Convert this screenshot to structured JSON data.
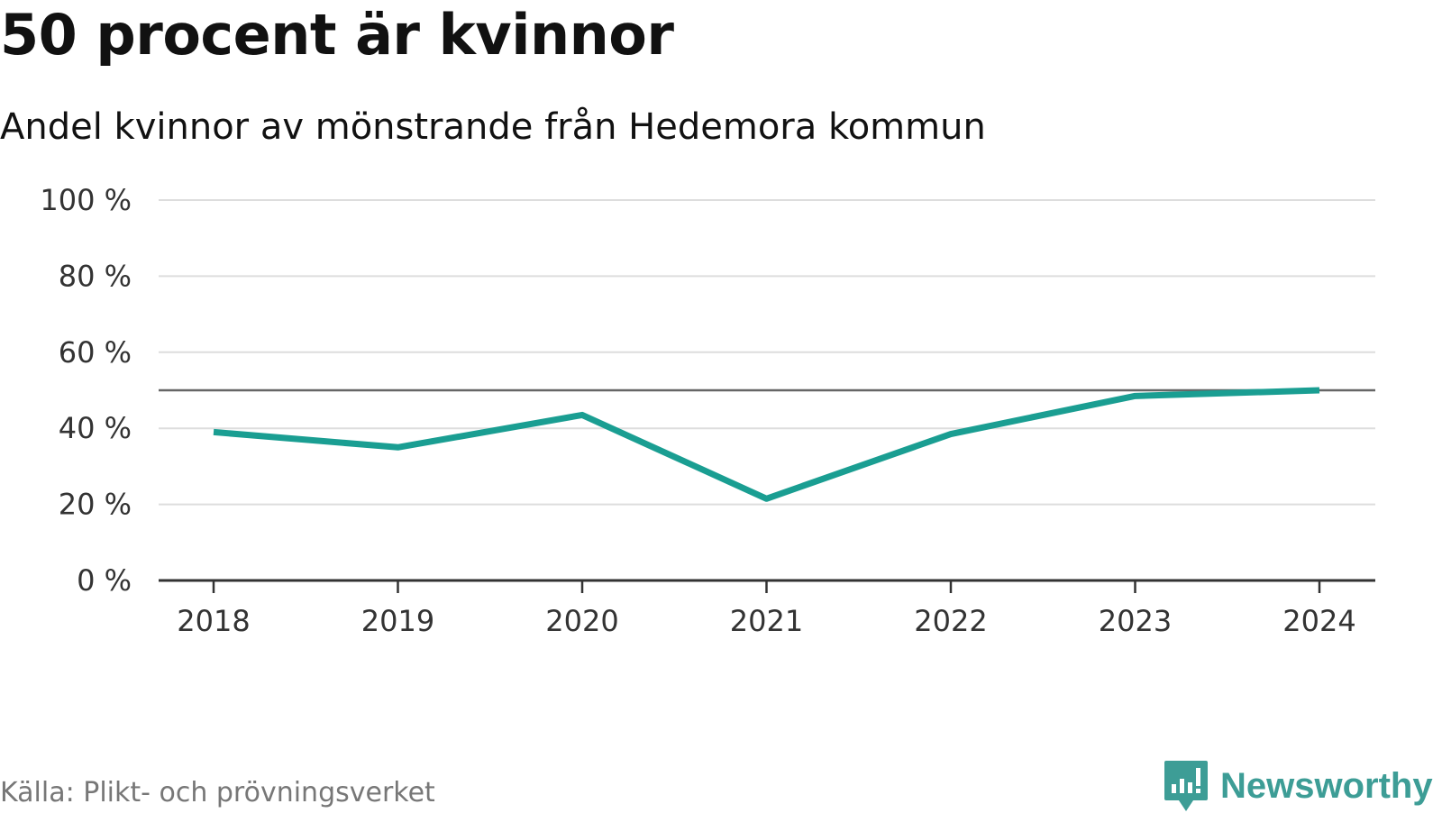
{
  "header": {
    "title": "50 procent är kvinnor",
    "subtitle": "Andel kvinnor av mönstrande från Hedemora kommun"
  },
  "footer": {
    "source": "Källa: Plikt- och prövningsverket",
    "brand": "Newsworthy"
  },
  "colors": {
    "line": "#1a9e92",
    "reference": "#666666",
    "grid": "#dddddd",
    "axis": "#333333",
    "brand": "#3d9d96"
  },
  "chart_data": {
    "type": "line",
    "title": "50 procent är kvinnor",
    "subtitle": "Andel kvinnor av mönstrande från Hedemora kommun",
    "xlabel": "",
    "ylabel": "",
    "x": [
      "2018",
      "2019",
      "2020",
      "2021",
      "2022",
      "2023",
      "2024"
    ],
    "series": [
      {
        "name": "Andel kvinnor",
        "values": [
          39,
          35,
          43.5,
          21.5,
          38.5,
          48.5,
          50
        ]
      }
    ],
    "reference_line": 50,
    "ylim": [
      0,
      100
    ],
    "yticks": [
      0,
      20,
      40,
      60,
      80,
      100
    ],
    "ytick_labels": [
      "0 %",
      "20 %",
      "40 %",
      "60 %",
      "80 %",
      "100 %"
    ],
    "grid": true,
    "legend": "none"
  }
}
